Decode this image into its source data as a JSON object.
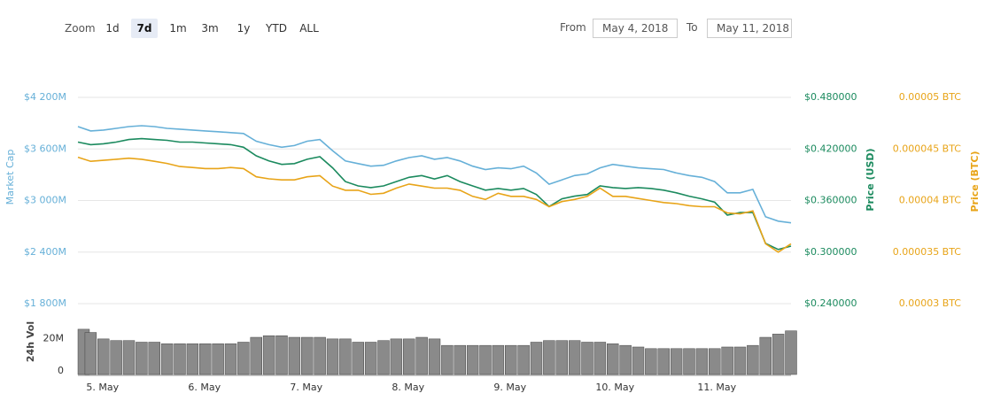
{
  "toolbar": {
    "zoom_label": "Zoom",
    "zoom_options": [
      "1d",
      "7d",
      "1m",
      "3m",
      "1y",
      "YTD",
      "ALL"
    ],
    "from_label": "From",
    "from": "May 4, 2018",
    "to_label": "To",
    "to": "May 11, 2018"
  },
  "chart_data": {
    "type": "line",
    "grid": true,
    "categories": [
      null,
      "5. May",
      null,
      null,
      null,
      null,
      null,
      null,
      null,
      "6. May",
      null,
      null,
      null,
      null,
      null,
      null,
      null,
      "7. May",
      null,
      null,
      null,
      null,
      null,
      null,
      null,
      "8. May",
      null,
      null,
      null,
      null,
      null,
      null,
      null,
      "9. May",
      null,
      null,
      null,
      null,
      null,
      null,
      null,
      "10. May",
      null,
      null,
      null,
      null,
      null,
      null,
      null,
      "11. May",
      null,
      null,
      null,
      null,
      null,
      null,
      null
    ],
    "ylim": [
      1800,
      4200
    ],
    "yticks": [
      {
        "value": 1800,
        "label": "$1 800M"
      },
      {
        "value": 2400,
        "label": "$2 400M"
      },
      {
        "value": 3000,
        "label": "$3 000M"
      },
      {
        "value": 3600,
        "label": "$3 600M"
      },
      {
        "value": 4200,
        "label": "$4 200M"
      }
    ],
    "y2lim": [
      0.24,
      0.48
    ],
    "y2ticks": [
      {
        "value": 0.24,
        "label": "$0.240000"
      },
      {
        "value": 0.3,
        "label": "$0.300000"
      },
      {
        "value": 0.36,
        "label": "$0.360000"
      },
      {
        "value": 0.42,
        "label": "$0.420000"
      },
      {
        "value": 0.48,
        "label": "$0.480000"
      }
    ],
    "y3lim": [
      3e-05,
      5e-05
    ],
    "y3ticks": [
      {
        "value": 3e-05,
        "label": "0.00003 BTC"
      },
      {
        "value": 3.5e-05,
        "label": "0.000035 BTC"
      },
      {
        "value": 4e-05,
        "label": "0.00004 BTC"
      },
      {
        "value": 4.5e-05,
        "label": "0.000045 BTC"
      },
      {
        "value": 5e-05,
        "label": "0.00005 BTC"
      }
    ],
    "y4lim": [
      0,
      40
    ],
    "y4ticks": [
      0,
      {
        "value": 20,
        "label": "20M"
      }
    ],
    "series": [
      {
        "name": "Market Cap",
        "axis": "y",
        "color": "#66b0d8",
        "values": [
          3860,
          3810,
          3820,
          3840,
          3860,
          3870,
          3860,
          3840,
          3830,
          3820,
          3810,
          3800,
          3790,
          3780,
          3690,
          3650,
          3620,
          3640,
          3690,
          3710,
          3580,
          3460,
          3430,
          3400,
          3410,
          3460,
          3500,
          3520,
          3480,
          3500,
          3460,
          3400,
          3360,
          3380,
          3370,
          3400,
          3320,
          3190,
          3240,
          3290,
          3310,
          3380,
          3420,
          3400,
          3380,
          3370,
          3360,
          3320,
          3290,
          3270,
          3220,
          3090,
          3090,
          3130,
          2810,
          2760,
          2740
        ]
      },
      {
        "name": "Price (USD)",
        "axis": "y2",
        "color": "#1b8a5e",
        "values": [
          0.428,
          0.425,
          0.426,
          0.428,
          0.431,
          0.432,
          0.431,
          0.43,
          0.428,
          0.428,
          0.427,
          0.426,
          0.425,
          0.422,
          0.412,
          0.406,
          0.402,
          0.403,
          0.408,
          0.411,
          0.398,
          0.382,
          0.377,
          0.375,
          0.377,
          0.382,
          0.387,
          0.389,
          0.385,
          0.389,
          0.382,
          0.377,
          0.372,
          0.374,
          0.372,
          0.374,
          0.367,
          0.353,
          0.362,
          0.365,
          0.367,
          0.377,
          0.375,
          0.374,
          0.375,
          0.374,
          0.372,
          0.369,
          0.365,
          0.362,
          0.358,
          0.343,
          0.346,
          0.346,
          0.31,
          0.303,
          0.307
        ]
      },
      {
        "name": "Price (BTC)",
        "axis": "y3",
        "color": "#e8a418",
        "values": [
          4.42e-05,
          4.38e-05,
          4.39e-05,
          4.4e-05,
          4.41e-05,
          4.4e-05,
          4.38e-05,
          4.36e-05,
          4.33e-05,
          4.32e-05,
          4.31e-05,
          4.31e-05,
          4.32e-05,
          4.31e-05,
          4.23e-05,
          4.21e-05,
          4.2e-05,
          4.2e-05,
          4.23e-05,
          4.24e-05,
          4.14e-05,
          4.1e-05,
          4.1e-05,
          4.06e-05,
          4.07e-05,
          4.12e-05,
          4.16e-05,
          4.14e-05,
          4.12e-05,
          4.12e-05,
          4.1e-05,
          4.04e-05,
          4.01e-05,
          4.07e-05,
          4.04e-05,
          4.04e-05,
          4.01e-05,
          3.94e-05,
          3.99e-05,
          4.01e-05,
          4.04e-05,
          4.12e-05,
          4.04e-05,
          4.04e-05,
          4.02e-05,
          4e-05,
          3.98e-05,
          3.97e-05,
          3.95e-05,
          3.94e-05,
          3.94e-05,
          3.88e-05,
          3.87e-05,
          3.9e-05,
          3.58e-05,
          3.5e-05,
          3.58e-05
        ]
      },
      {
        "name": "24h Vol",
        "axis": "y4",
        "type": "bar",
        "color": "#8a8a8a",
        "values": [
          28,
          26,
          22,
          21,
          21,
          20,
          20,
          19,
          19,
          19,
          19,
          19,
          19,
          20,
          23,
          24,
          24,
          23,
          23,
          23,
          22,
          22,
          20,
          20,
          21,
          22,
          22,
          23,
          22,
          18,
          18,
          18,
          18,
          18,
          18,
          18,
          20,
          21,
          21,
          21,
          20,
          20,
          19,
          18,
          17,
          16,
          16,
          16,
          16,
          16,
          16,
          17,
          17,
          18,
          23,
          25,
          27
        ]
      }
    ]
  }
}
